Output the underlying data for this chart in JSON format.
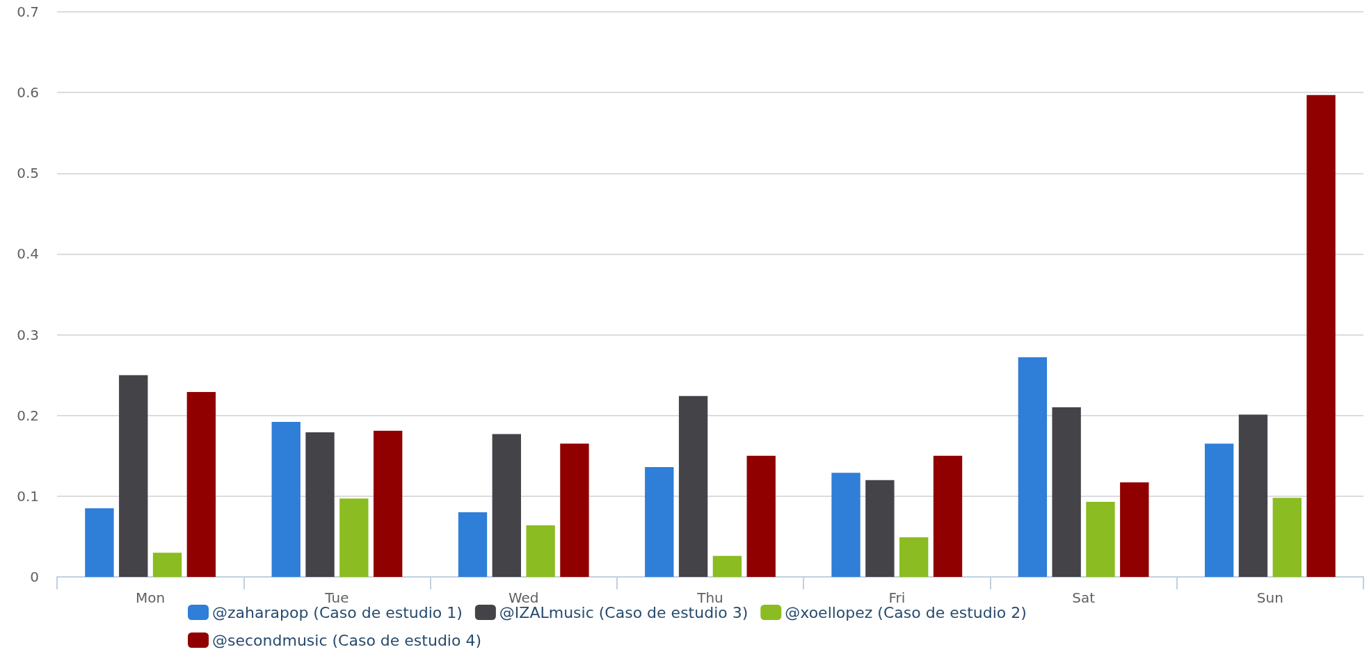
{
  "chart_data": {
    "type": "bar",
    "categories": [
      "Mon",
      "Tue",
      "Wed",
      "Thu",
      "Fri",
      "Sat",
      "Sun"
    ],
    "series": [
      {
        "name": "@zaharapop (Caso de estudio 1)",
        "color": "#2f7ed8",
        "values": [
          0.085,
          0.192,
          0.08,
          0.136,
          0.129,
          0.272,
          0.165
        ]
      },
      {
        "name": "@IZALmusic (Caso de estudio 3)",
        "color": "#434348",
        "values": [
          0.25,
          0.179,
          0.177,
          0.224,
          0.12,
          0.21,
          0.201
        ]
      },
      {
        "name": "@xoellopez (Caso de estudio 2)",
        "color": "#8bbc21",
        "values": [
          0.03,
          0.097,
          0.064,
          0.026,
          0.049,
          0.093,
          0.098
        ]
      },
      {
        "name": "@secondmusic (Caso de estudio 4)",
        "color": "#910000",
        "values": [
          0.229,
          0.181,
          0.165,
          0.15,
          0.15,
          0.117,
          0.597
        ]
      }
    ],
    "ylim": [
      0,
      0.7
    ],
    "yticks": [
      0,
      0.1,
      0.2,
      0.3,
      0.4,
      0.5,
      0.6,
      0.7
    ],
    "grid": "y",
    "legend": "bottom"
  }
}
